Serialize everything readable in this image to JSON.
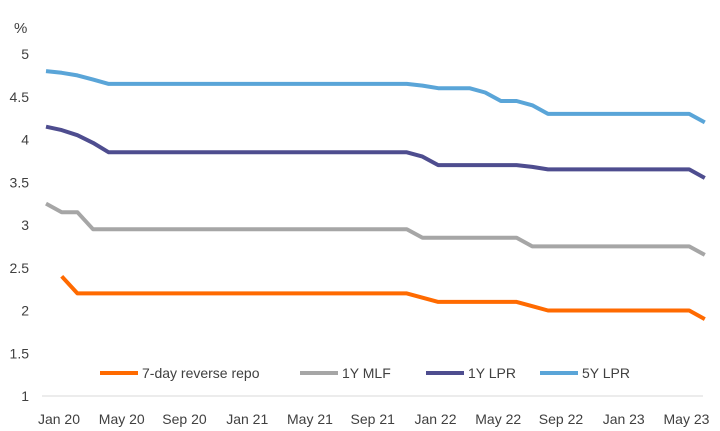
{
  "chart_data": {
    "type": "line",
    "ylabel": "%",
    "ylim": [
      1,
      5
    ],
    "yticks": [
      "1",
      "1.5",
      "2",
      "2.5",
      "3",
      "3.5",
      "4",
      "4.5",
      "5"
    ],
    "xticks": [
      "Jan 20",
      "May 20",
      "Sep 20",
      "Jan 21",
      "May 21",
      "Sep 21",
      "Jan 22",
      "May 22",
      "Sep 22",
      "Jan 23",
      "May 23"
    ],
    "xlim": [
      0,
      41.5
    ],
    "grid": false,
    "legend": "bottom-inside",
    "series": [
      {
        "name": "7-day reverse repo",
        "color": "#FF6A00",
        "points": [
          [
            1,
            2.4
          ],
          [
            2,
            2.2
          ],
          [
            3,
            2.2
          ],
          [
            4,
            2.2
          ],
          [
            23,
            2.2
          ],
          [
            24,
            2.15
          ],
          [
            25,
            2.1
          ],
          [
            28,
            2.1
          ],
          [
            29,
            2.1
          ],
          [
            30,
            2.1
          ],
          [
            31,
            2.05
          ],
          [
            32,
            2.0
          ],
          [
            41,
            2.0
          ],
          [
            42,
            1.9
          ]
        ]
      },
      {
        "name": "1Y MLF",
        "color": "#A6A6A6",
        "points": [
          [
            0,
            3.25
          ],
          [
            1,
            3.15
          ],
          [
            2,
            3.15
          ],
          [
            3,
            2.95
          ],
          [
            23,
            2.95
          ],
          [
            24,
            2.85
          ],
          [
            30,
            2.85
          ],
          [
            31,
            2.75
          ],
          [
            41,
            2.75
          ],
          [
            42,
            2.65
          ]
        ]
      },
      {
        "name": "1Y LPR",
        "color": "#4E4D8F",
        "points": [
          [
            0,
            4.15
          ],
          [
            1,
            4.11
          ],
          [
            2,
            4.05
          ],
          [
            3,
            3.96
          ],
          [
            4,
            3.85
          ],
          [
            23,
            3.85
          ],
          [
            24,
            3.8
          ],
          [
            25,
            3.7
          ],
          [
            30,
            3.7
          ],
          [
            31,
            3.68
          ],
          [
            32,
            3.65
          ],
          [
            41,
            3.65
          ],
          [
            42,
            3.55
          ]
        ]
      },
      {
        "name": "5Y LPR",
        "color": "#5AA5D8",
        "points": [
          [
            0,
            4.8
          ],
          [
            1,
            4.78
          ],
          [
            2,
            4.75
          ],
          [
            3,
            4.7
          ],
          [
            4,
            4.65
          ],
          [
            23,
            4.65
          ],
          [
            24,
            4.63
          ],
          [
            25,
            4.6
          ],
          [
            27,
            4.6
          ],
          [
            28,
            4.55
          ],
          [
            29,
            4.45
          ],
          [
            30,
            4.45
          ],
          [
            31,
            4.4
          ],
          [
            32,
            4.3
          ],
          [
            41,
            4.3
          ],
          [
            42,
            4.2
          ]
        ]
      }
    ]
  }
}
